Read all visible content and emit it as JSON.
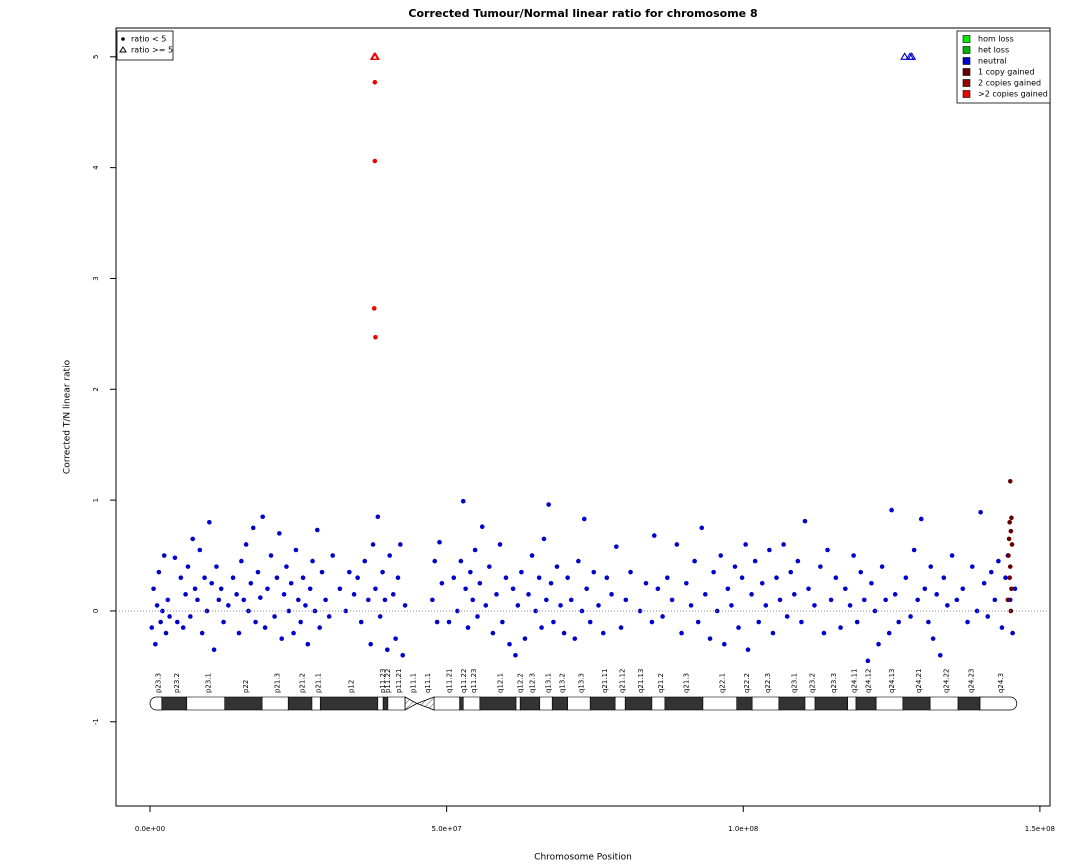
{
  "chart_data": {
    "type": "scatter",
    "title": "Corrected Tumour/Normal linear ratio for chromosome  8",
    "x_label": "Chromosome Position",
    "y_label": "Corrected T/N linear ratio",
    "xlim": [
      -5730000.0,
      151700000.0
    ],
    "ylim": [
      -1.76,
      5.26
    ],
    "xticks": [
      {
        "value": 0,
        "label": "0.0e+00"
      },
      {
        "value": 50000000.0,
        "label": "5.0e+07"
      },
      {
        "value": 100000000.0,
        "label": "1.0e+08"
      },
      {
        "value": 150000000.0,
        "label": "1.5e+08"
      }
    ],
    "yticks": [
      -1,
      0,
      1,
      2,
      3,
      4,
      5
    ],
    "hline": 0,
    "marker_legend": [
      {
        "label": "ratio < 5",
        "shape": "dot"
      },
      {
        "label": "ratio >= 5",
        "shape": "triangle"
      }
    ],
    "copy_legend": [
      {
        "label": "hom loss",
        "color": "#00ee00"
      },
      {
        "label": "het loss",
        "color": "#00b400"
      },
      {
        "label": "neutral",
        "color": "#0000cc"
      },
      {
        "label": "1 copy gained",
        "color": "#660000"
      },
      {
        "label": "2 copies gained",
        "color": "#990000"
      },
      {
        "label": ">2 copies gained",
        "color": "#ee0000"
      }
    ],
    "series": [
      {
        "state": 2,
        "marker": 0,
        "x": [
          300000.0,
          600000.0,
          900000.0,
          1200000.0,
          1500000.0,
          1800000.0,
          2100000.0,
          2400000.0,
          2700000.0,
          3000000.0,
          3300000.0,
          4200000.0,
          4600000.0,
          5200000.0,
          5600000.0,
          6000000.0,
          6400000.0,
          6800000.0,
          7200000.0,
          7600000.0,
          8000000.0,
          8400000.0,
          8800000.0,
          9200000.0,
          9600000.0,
          10000000.0,
          10400000.0,
          10800000.0,
          11200000.0,
          11600000.0,
          12000000.0,
          12400000.0,
          13200000.0,
          14000000.0,
          14600000.0,
          15000000.0,
          15400000.0,
          15800000.0,
          16200000.0,
          16600000.0,
          17000000.0,
          17400000.0,
          17800000.0,
          18200000.0,
          18600000.0,
          19000000.0,
          19400000.0,
          19800000.0,
          20400000.0,
          21000000.0,
          21400000.0,
          21800000.0,
          22200000.0,
          22600000.0,
          23000000.0,
          23400000.0,
          23800000.0,
          24200000.0,
          24600000.0,
          25000000.0,
          25400000.0,
          25800000.0,
          26200000.0,
          26600000.0,
          27000000.0,
          27400000.0,
          27800000.0,
          28200000.0,
          28600000.0,
          29000000.0,
          29600000.0,
          30200000.0,
          30800000.0,
          32000000.0,
          33000000.0,
          33600000.0,
          34400000.0,
          35000000.0,
          35600000.0,
          36200000.0,
          36800000.0,
          37200000.0,
          37600000.0,
          38000000.0,
          38400000.0,
          38800000.0,
          39200000.0,
          39600000.0,
          40000000.0,
          40400000.0,
          41000000.0,
          41400000.0,
          41800000.0,
          42200000.0,
          42600000.0,
          43000000.0,
          47600000.0,
          48000000.0,
          48400000.0,
          48800000.0,
          49200000.0,
          50400000.0,
          51200000.0,
          51800000.0,
          52400000.0,
          52800000.0,
          53200000.0,
          53600000.0,
          54000000.0,
          54400000.0,
          54800000.0,
          55200000.0,
          55600000.0,
          56000000.0,
          56600000.0,
          57200000.0,
          57800000.0,
          58400000.0,
          59000000.0,
          59400000.0,
          60000000.0,
          60600000.0,
          61200000.0,
          61600000.0,
          62000000.0,
          62600000.0,
          63200000.0,
          63800000.0,
          64400000.0,
          65000000.0,
          65600000.0,
          66000000.0,
          66400000.0,
          66800000.0,
          67200000.0,
          67600000.0,
          68000000.0,
          68600000.0,
          69200000.0,
          69800000.0,
          70400000.0,
          71000000.0,
          71600000.0,
          72200000.0,
          72800000.0,
          73200000.0,
          73600000.0,
          74200000.0,
          74800000.0,
          75600000.0,
          76400000.0,
          77000000.0,
          77800000.0,
          78600000.0,
          79400000.0,
          80200000.0,
          81000000.0,
          82600000.0,
          83600000.0,
          84600000.0,
          85000000.0,
          85600000.0,
          86400000.0,
          87200000.0,
          88000000.0,
          88800000.0,
          89600000.0,
          90400000.0,
          91200000.0,
          91800000.0,
          92400000.0,
          93000000.0,
          93600000.0,
          94400000.0,
          95000000.0,
          95600000.0,
          96200000.0,
          96800000.0,
          97400000.0,
          98000000.0,
          98600000.0,
          99200000.0,
          99800000.0,
          100400000.0,
          100800000.0,
          101400000.0,
          102000000.0,
          102600000.0,
          103200000.0,
          103800000.0,
          104400000.0,
          105000000.0,
          105600000.0,
          106200000.0,
          106800000.0,
          107400000.0,
          108000000.0,
          108600000.0,
          109200000.0,
          109800000.0,
          110400000.0,
          111000000.0,
          112000000.0,
          113000000.0,
          113600000.0,
          114200000.0,
          114800000.0,
          115600000.0,
          116400000.0,
          117200000.0,
          118000000.0,
          118600000.0,
          119200000.0,
          119800000.0,
          120400000.0,
          121000000.0,
          121600000.0,
          122200000.0,
          122800000.0,
          123400000.0,
          124000000.0,
          124600000.0,
          125000000.0,
          125600000.0,
          126200000.0,
          127400000.0,
          128200000.0,
          128800000.0,
          129400000.0,
          130000000.0,
          130600000.0,
          131200000.0,
          131600000.0,
          132000000.0,
          132600000.0,
          133200000.0,
          133800000.0,
          134400000.0,
          135200000.0,
          136000000.0,
          137000000.0,
          137800000.0,
          138600000.0,
          139400000.0,
          140000000.0,
          140600000.0,
          141200000.0,
          141800000.0,
          142400000.0,
          143000000.0,
          143600000.0,
          144200000.0,
          144600000.0,
          145000000.0,
          145400000.0,
          145800000.0
        ],
        "values": [
          -0.15,
          0.2,
          -0.3,
          0.05,
          0.35,
          -0.1,
          0.0,
          0.5,
          -0.2,
          0.1,
          -0.05,
          0.48,
          -0.1,
          0.3,
          -0.15,
          0.15,
          0.4,
          -0.05,
          0.65,
          0.2,
          0.1,
          0.55,
          -0.2,
          0.3,
          0.0,
          0.8,
          0.25,
          -0.35,
          0.4,
          0.1,
          0.2,
          -0.1,
          0.05,
          0.3,
          0.15,
          -0.2,
          0.45,
          0.1,
          0.6,
          0.0,
          0.25,
          0.75,
          -0.1,
          0.35,
          0.12,
          0.85,
          -0.15,
          0.2,
          0.5,
          -0.05,
          0.3,
          0.7,
          -0.25,
          0.15,
          0.4,
          0.0,
          0.25,
          -0.2,
          0.55,
          0.1,
          -0.1,
          0.3,
          0.05,
          -0.3,
          0.2,
          0.45,
          0.0,
          0.73,
          -0.15,
          0.35,
          0.1,
          -0.05,
          0.5,
          0.2,
          0.0,
          0.35,
          0.15,
          0.3,
          -0.1,
          0.45,
          0.1,
          -0.3,
          0.6,
          0.2,
          0.85,
          -0.05,
          0.35,
          0.1,
          -0.35,
          0.5,
          0.15,
          -0.25,
          0.3,
          0.6,
          -0.4,
          0.05,
          0.1,
          0.45,
          -0.1,
          0.62,
          0.25,
          -0.1,
          0.3,
          0.0,
          0.45,
          0.99,
          0.2,
          -0.15,
          0.35,
          0.1,
          0.55,
          -0.05,
          0.25,
          0.76,
          0.05,
          0.4,
          -0.2,
          0.15,
          0.6,
          -0.1,
          0.3,
          -0.3,
          0.2,
          -0.4,
          0.05,
          0.35,
          -0.25,
          0.15,
          0.5,
          0.0,
          0.3,
          -0.15,
          0.65,
          0.1,
          0.96,
          0.25,
          -0.1,
          0.4,
          0.05,
          -0.2,
          0.3,
          0.1,
          -0.25,
          0.45,
          0.0,
          0.83,
          0.2,
          -0.1,
          0.35,
          0.05,
          -0.2,
          0.3,
          0.15,
          0.58,
          -0.15,
          0.1,
          0.35,
          0.0,
          0.25,
          -0.1,
          0.68,
          0.2,
          -0.05,
          0.3,
          0.1,
          0.6,
          -0.2,
          0.25,
          0.05,
          0.45,
          -0.1,
          0.75,
          0.15,
          -0.25,
          0.35,
          0.0,
          0.5,
          -0.3,
          0.2,
          0.05,
          0.4,
          -0.15,
          0.3,
          0.6,
          -0.35,
          0.15,
          0.45,
          -0.1,
          0.25,
          0.05,
          0.55,
          -0.2,
          0.3,
          0.1,
          0.6,
          -0.05,
          0.35,
          0.15,
          0.45,
          -0.1,
          0.81,
          0.2,
          0.05,
          0.4,
          -0.2,
          0.55,
          0.1,
          0.3,
          -0.15,
          0.2,
          0.05,
          0.5,
          -0.1,
          0.35,
          0.1,
          -0.45,
          0.25,
          0.0,
          -0.3,
          0.4,
          0.1,
          -0.2,
          0.91,
          0.15,
          -0.1,
          0.3,
          -0.05,
          0.55,
          0.1,
          0.83,
          0.2,
          -0.1,
          0.4,
          -0.25,
          0.15,
          -0.4,
          0.3,
          0.05,
          0.5,
          0.1,
          0.2,
          -0.1,
          0.4,
          0.0,
          0.89,
          0.25,
          -0.05,
          0.35,
          0.1,
          0.45,
          -0.15,
          0.3,
          0.5,
          0.1,
          -0.2,
          0.2
        ]
      },
      {
        "state": 3,
        "marker": 0,
        "x": [
          145000000.0,
          145200000.0,
          144900000.0,
          145100000.0,
          144800000.0,
          145300000.0,
          144700000.0,
          145000000.0,
          144900000.0,
          145200000.0,
          144600000.0,
          145100000.0
        ],
        "values": [
          1.17,
          0.84,
          0.8,
          0.72,
          0.65,
          0.6,
          0.5,
          0.4,
          0.3,
          0.2,
          0.1,
          0.0
        ]
      },
      {
        "state": 5,
        "marker": 0,
        "x": [
          37900000.0,
          37900000.0,
          37800000.0,
          38000000.0
        ],
        "values": [
          4.77,
          4.06,
          2.73,
          2.47
        ]
      },
      {
        "state": 5,
        "marker": 1,
        "x": [
          37800000.0,
          38000000.0
        ],
        "values": [
          5,
          5
        ]
      },
      {
        "state": 2,
        "marker": 1,
        "x": [
          127200000.0,
          128100000.0,
          128400000.0
        ],
        "values": [
          5,
          5,
          5
        ]
      }
    ],
    "ideogram": [
      {
        "name": "p23.3",
        "start": 0,
        "end": 2000000.0,
        "color": "#ffffff"
      },
      {
        "name": "p23.2",
        "start": 2000000.0,
        "end": 6200000.0,
        "color": "#333333"
      },
      {
        "name": "p23.1",
        "start": 6200000.0,
        "end": 12600000.0,
        "color": "#ffffff"
      },
      {
        "name": "p22",
        "start": 12600000.0,
        "end": 18900000.0,
        "color": "#333333"
      },
      {
        "name": "p21.3",
        "start": 18900000.0,
        "end": 23300000.0,
        "color": "#ffffff"
      },
      {
        "name": "p21.2",
        "start": 23300000.0,
        "end": 27300000.0,
        "color": "#333333"
      },
      {
        "name": "p21.1",
        "start": 27300000.0,
        "end": 28700000.0,
        "color": "#ffffff"
      },
      {
        "name": "p12",
        "start": 28700000.0,
        "end": 38400000.0,
        "color": "#333333"
      },
      {
        "name": "p11.23",
        "start": 38400000.0,
        "end": 39300000.0,
        "color": "#ffffff"
      },
      {
        "name": "p11.22",
        "start": 39300000.0,
        "end": 40100000.0,
        "color": "#333333"
      },
      {
        "name": "p11.21",
        "start": 40100000.0,
        "end": 43000000.0,
        "color": "#ffffff"
      },
      {
        "name": "p11.1",
        "start": 43000000.0,
        "end": 45000000.0,
        "color": "hatch"
      },
      {
        "name": "q11.1",
        "start": 45000000.0,
        "end": 47900000.0,
        "color": "hatch"
      },
      {
        "name": "q11.21",
        "start": 47900000.0,
        "end": 52200000.0,
        "color": "#ffffff"
      },
      {
        "name": "q11.22",
        "start": 52200000.0,
        "end": 52800000.0,
        "color": "#333333"
      },
      {
        "name": "q11.23",
        "start": 52800000.0,
        "end": 55600000.0,
        "color": "#ffffff"
      },
      {
        "name": "q12.1",
        "start": 55600000.0,
        "end": 61700000.0,
        "color": "#333333"
      },
      {
        "name": "q12.2",
        "start": 61700000.0,
        "end": 62400000.0,
        "color": "#ffffff"
      },
      {
        "name": "q12.3",
        "start": 62400000.0,
        "end": 65700000.0,
        "color": "#333333"
      },
      {
        "name": "q13.1",
        "start": 65700000.0,
        "end": 67800000.0,
        "color": "#ffffff"
      },
      {
        "name": "q13.2",
        "start": 67800000.0,
        "end": 70400000.0,
        "color": "#333333"
      },
      {
        "name": "q13.3",
        "start": 70400000.0,
        "end": 74200000.0,
        "color": "#ffffff"
      },
      {
        "name": "q21.11",
        "start": 74200000.0,
        "end": 78400000.0,
        "color": "#333333"
      },
      {
        "name": "q21.12",
        "start": 78400000.0,
        "end": 80100000.0,
        "color": "#ffffff"
      },
      {
        "name": "q21.13",
        "start": 80100000.0,
        "end": 84600000.0,
        "color": "#333333"
      },
      {
        "name": "q21.2",
        "start": 84600000.0,
        "end": 86800000.0,
        "color": "#ffffff"
      },
      {
        "name": "q21.3",
        "start": 86800000.0,
        "end": 93200000.0,
        "color": "#333333"
      },
      {
        "name": "q22.1",
        "start": 93200000.0,
        "end": 98900000.0,
        "color": "#ffffff"
      },
      {
        "name": "q22.2",
        "start": 98900000.0,
        "end": 101500000.0,
        "color": "#333333"
      },
      {
        "name": "q22.3",
        "start": 101500000.0,
        "end": 106000000.0,
        "color": "#ffffff"
      },
      {
        "name": "q23.1",
        "start": 106000000.0,
        "end": 110400000.0,
        "color": "#333333"
      },
      {
        "name": "q23.2",
        "start": 110400000.0,
        "end": 112100000.0,
        "color": "#ffffff"
      },
      {
        "name": "q23.3",
        "start": 112100000.0,
        "end": 117600000.0,
        "color": "#333333"
      },
      {
        "name": "q24.11",
        "start": 117600000.0,
        "end": 119000000.0,
        "color": "#ffffff"
      },
      {
        "name": "q24.12",
        "start": 119000000.0,
        "end": 122400000.0,
        "color": "#333333"
      },
      {
        "name": "q24.13",
        "start": 122400000.0,
        "end": 126900000.0,
        "color": "#ffffff"
      },
      {
        "name": "q24.21",
        "start": 126900000.0,
        "end": 131500000.0,
        "color": "#333333"
      },
      {
        "name": "q24.22",
        "start": 131500000.0,
        "end": 136200000.0,
        "color": "#ffffff"
      },
      {
        "name": "q24.23",
        "start": 136200000.0,
        "end": 139900000.0,
        "color": "#333333"
      },
      {
        "name": "q24.3",
        "start": 139900000.0,
        "end": 146100000.0,
        "color": "#ffffff"
      }
    ]
  }
}
